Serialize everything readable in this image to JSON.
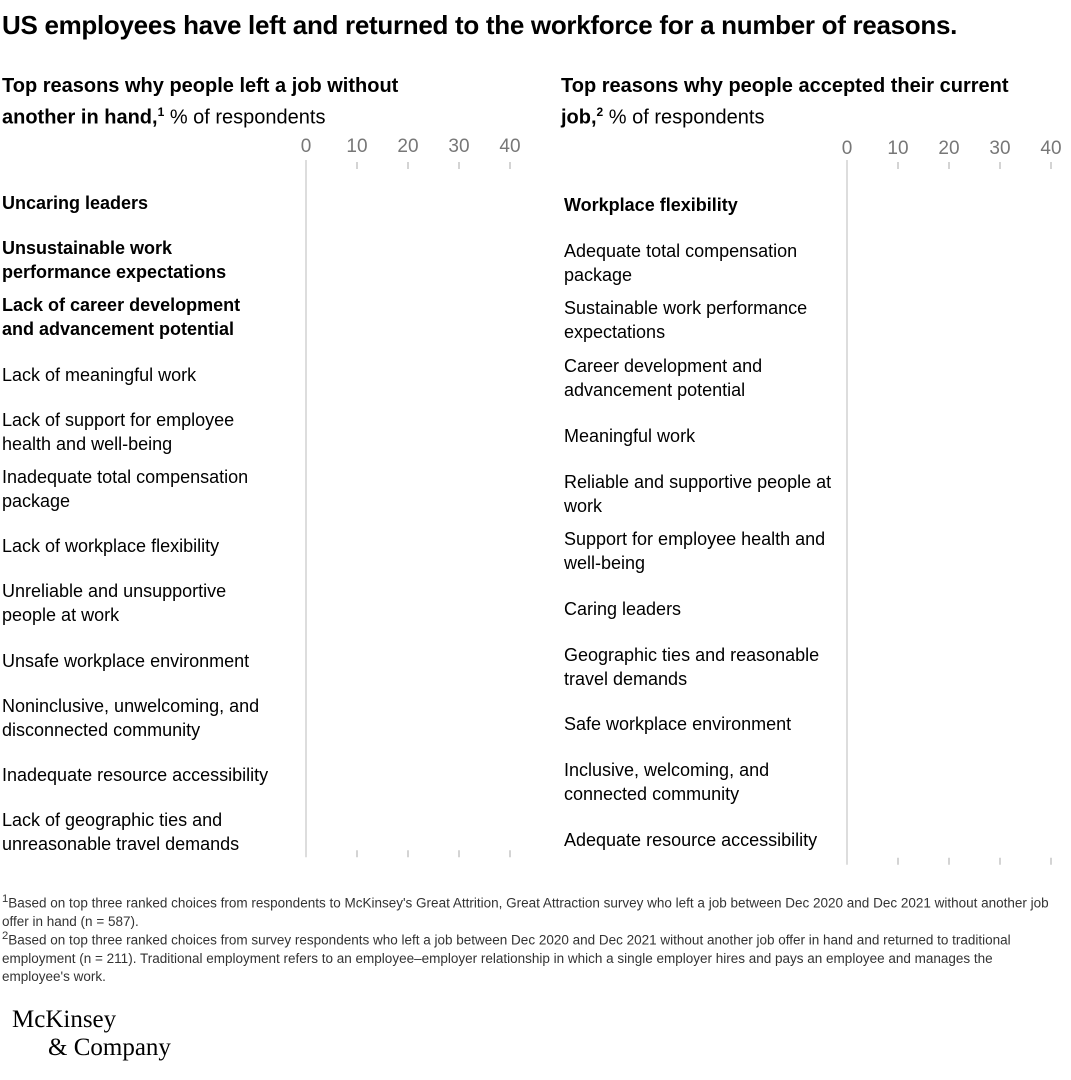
{
  "title": "US employees have left and returned to the workforce for a number of reasons.",
  "chart_data": [
    {
      "type": "bar",
      "title": "Top reasons why people left a job without another in hand,",
      "title_note": "1",
      "subtitle": "% of respondents",
      "categories": [
        "Uncaring leaders",
        "Unsustainable work performance expectations",
        "Lack of career development and advancement potential",
        "Lack of meaningful work",
        "Lack of support for employee health and well-being",
        "Inadequate total compensation package",
        "Lack of workplace flexibility",
        "Unreliable and unsupportive people at work",
        "Unsafe workplace environment",
        "Noninclusive, unwelcoming, and disconnected community",
        "Inadequate resource accessibility",
        "Lack of geographic ties and unreasonable travel demands"
      ],
      "bold_categories": [
        0,
        1,
        2
      ],
      "xlim": [
        0,
        40
      ],
      "xticks": [
        0,
        10,
        20,
        30,
        40
      ]
    },
    {
      "type": "bar",
      "title": "Top reasons why people accepted their current job,",
      "title_note": "2",
      "subtitle": "% of respondents",
      "categories": [
        "Workplace flexibility",
        "Adequate total compensation package",
        "Sustainable work performance expectations",
        "Career development and advancement potential",
        "Meaningful work",
        "Reliable and supportive people at work",
        "Support for employee health and well-being",
        "Caring leaders",
        "Geographic ties and reasonable travel demands",
        "Safe workplace environment",
        "Inclusive, welcoming, and connected community",
        "Adequate resource accessibility"
      ],
      "bold_categories": [
        0
      ],
      "xlim": [
        0,
        40
      ],
      "xticks": [
        0,
        10,
        20,
        30,
        40
      ]
    }
  ],
  "footnotes": [
    {
      "marker": "1",
      "text": "Based on top three ranked choices from respondents to McKinsey's Great Attrition, Great Attraction survey who left a job between Dec 2020 and Dec 2021 without another job offer in hand (n = 587)."
    },
    {
      "marker": "2",
      "text": "Based on top three ranked choices from survey respondents who left a job between Dec 2020 and Dec 2021 without another job offer in hand and returned to traditional employment (n = 211). Traditional employment refers to an employee–employer relationship in which a single employer hires and pays an employee and manages the employee's work."
    }
  ],
  "logo": [
    "McKinsey",
    "& Company"
  ]
}
